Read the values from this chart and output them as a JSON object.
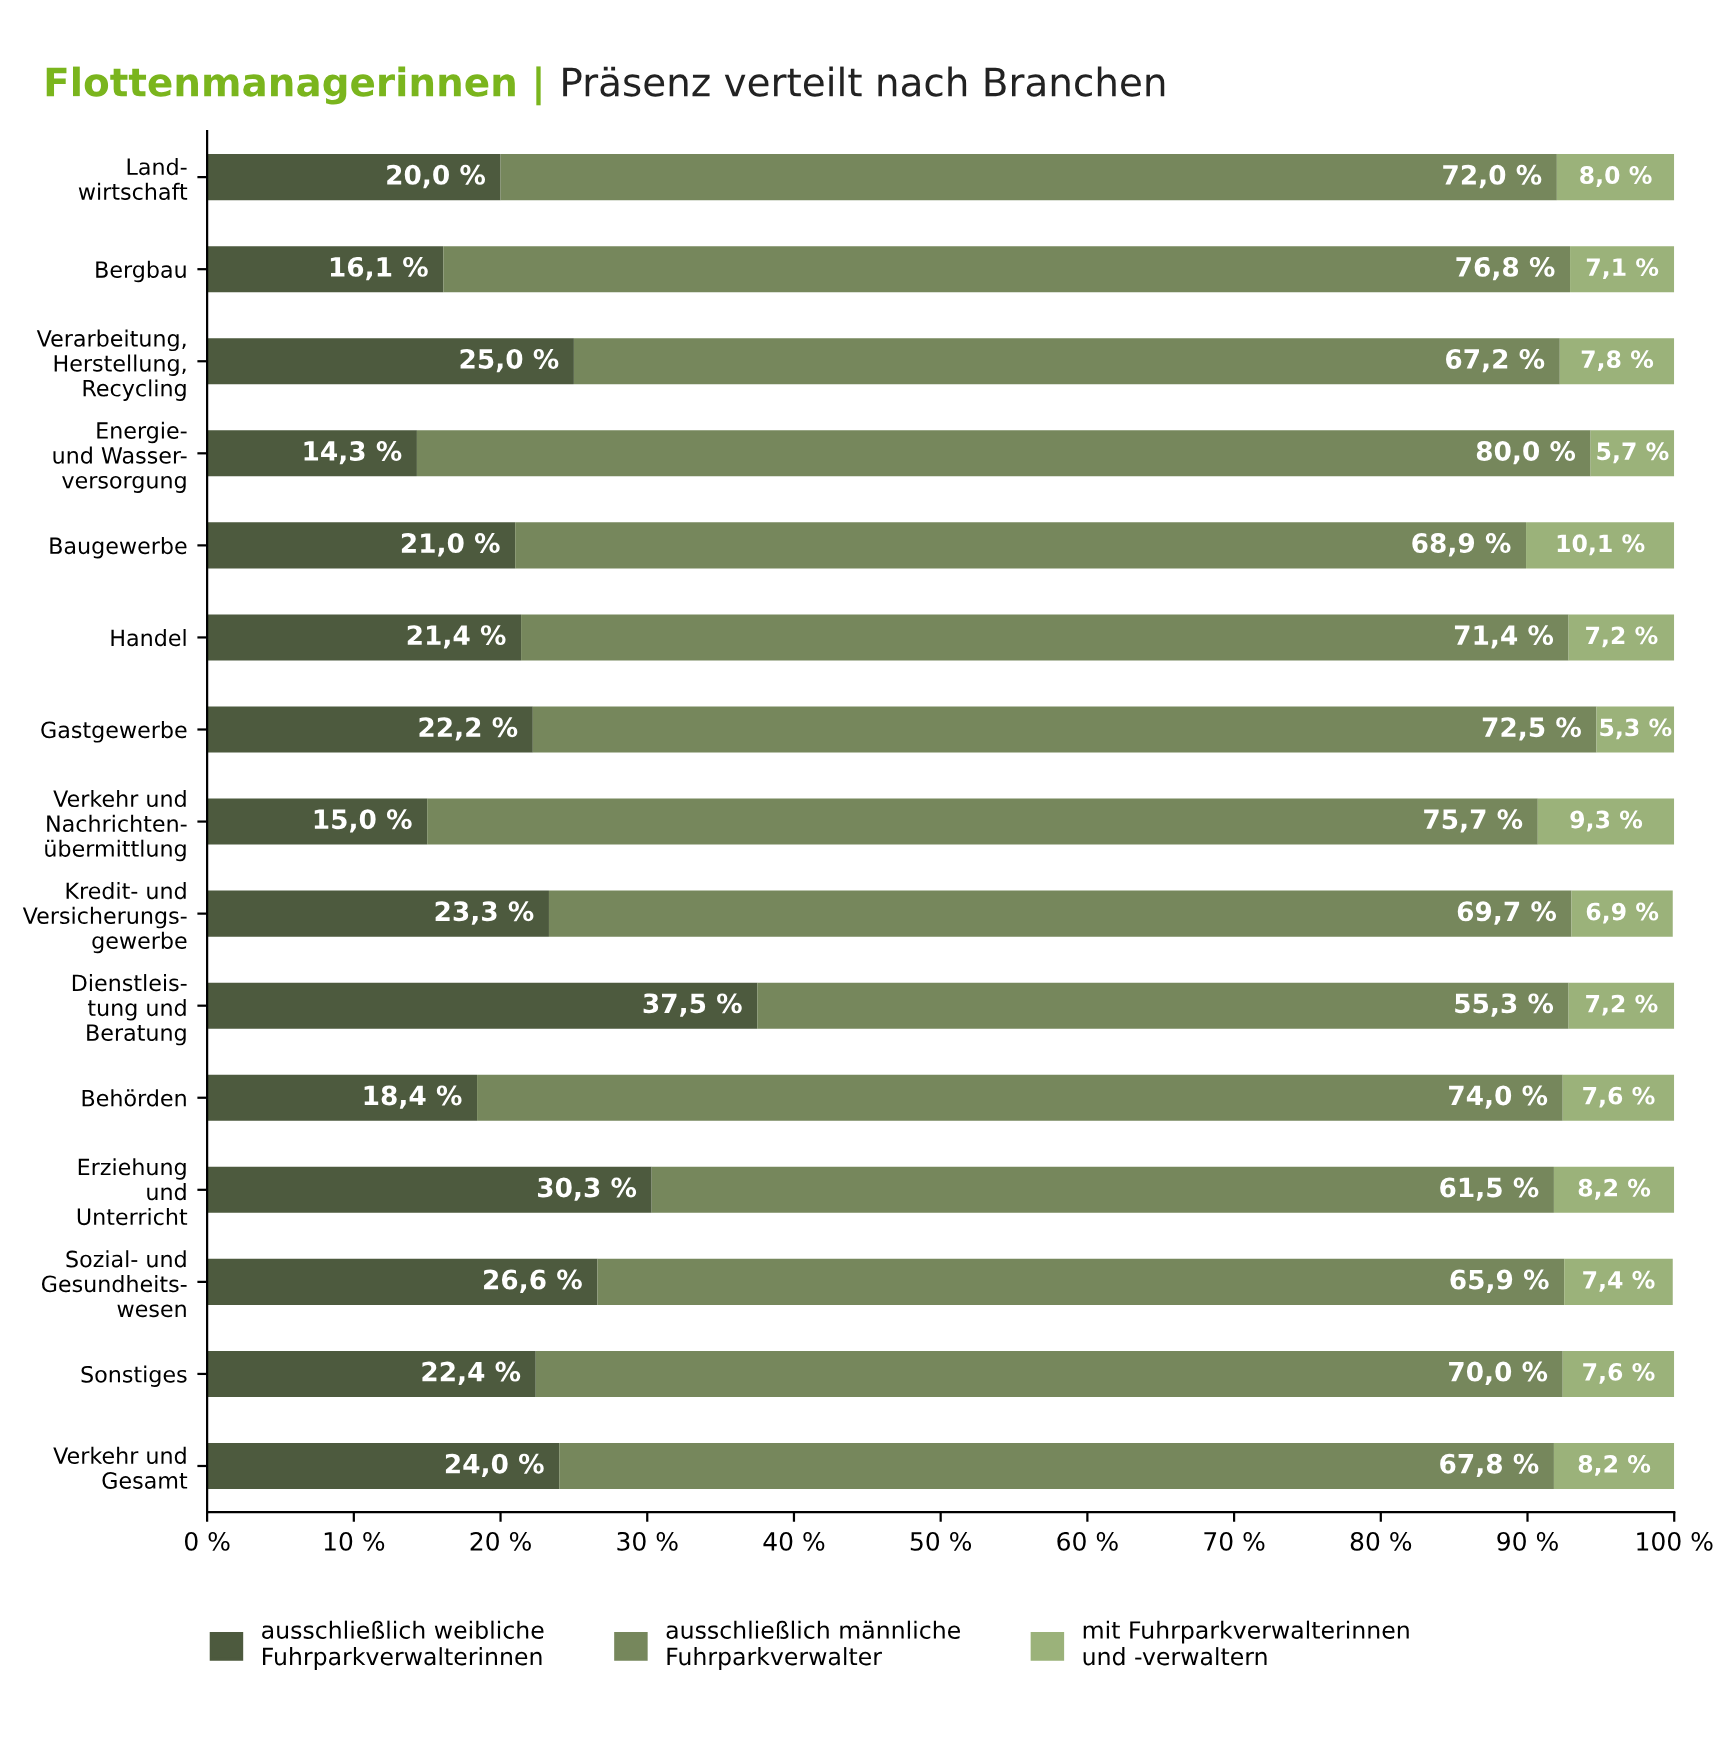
{
  "chart_data": {
    "type": "bar",
    "orientation": "horizontal",
    "stacked": true,
    "title": "Flottenmanagerinnen |",
    "subtitle": "Präsenz verteilt nach Branchen",
    "categories": [
      "Land-\nwirtschaft",
      "Bergbau",
      "Verarbeitung,\nHerstellung,\nRecycling",
      "Energie-\nund Wasser-\nversorgung",
      "Baugewerbe",
      "Handel",
      "Gastgewerbe",
      "Verkehr und\nNachrichten-\nübermittlung",
      "Kredit- und\nVersicherungs-\ngewerbe",
      "Dienstleis-\ntung und\nBeratung",
      "Behörden",
      "Erziehung\nund\nUnterricht",
      "Sozial- und\nGesundheits-\nwesen",
      "Sonstiges",
      "Verkehr und\nGesamt"
    ],
    "series": [
      {
        "name": "ausschließlich weibliche\nFuhrparkverwalterinnen",
        "color": "#4d5a3e",
        "values": [
          20.0,
          16.1,
          25.0,
          14.3,
          21.0,
          21.4,
          22.2,
          15.0,
          23.3,
          37.5,
          18.4,
          30.3,
          26.6,
          22.4,
          24.0
        ],
        "value_labels": [
          "20,0 %",
          "16,1 %",
          "25,0 %",
          "14,3 %",
          "21,0 %",
          "21,4 %",
          "22,2 %",
          "15,0 %",
          "23,3 %",
          "37,5 %",
          "18,4 %",
          "30,3 %",
          "26,6 %",
          "22,4 %",
          "24,0 %"
        ]
      },
      {
        "name": "ausschließlich männliche\nFuhrparkverwalter",
        "color": "#76875c",
        "values": [
          72.0,
          76.8,
          67.2,
          80.0,
          68.9,
          71.4,
          72.5,
          75.7,
          69.7,
          55.3,
          74.0,
          61.5,
          65.9,
          70.0,
          67.8
        ],
        "value_labels": [
          "72,0 %",
          "76,8 %",
          "67,2 %",
          "80,0 %",
          "68,9 %",
          "71,4 %",
          "72,5 %",
          "75,7 %",
          "69,7 %",
          "55,3 %",
          "74,0 %",
          "61,5 %",
          "65,9 %",
          "70,0 %",
          "67,8 %"
        ]
      },
      {
        "name": "mit Fuhrparkverwalterinnen\nund -verwaltern",
        "color": "#9bb27a",
        "values": [
          8.0,
          7.1,
          7.8,
          5.7,
          10.1,
          7.2,
          5.3,
          9.3,
          6.9,
          7.2,
          7.6,
          8.2,
          7.4,
          7.6,
          8.2
        ],
        "value_labels": [
          "8,0 %",
          "7,1 %",
          "7,8 %",
          "5,7 %",
          "10,1 %",
          "7,2 %",
          "5,3 %",
          "9,3 %",
          "6,9 %",
          "7,2 %",
          "7,6 %",
          "8,2 %",
          "7,4 %",
          "7,6 %",
          "8,2 %"
        ]
      }
    ],
    "xlim": [
      0,
      100
    ],
    "xticks": [
      {
        "value": 0,
        "label": "0 %"
      },
      {
        "value": 10,
        "label": "10 %"
      },
      {
        "value": 20,
        "label": "20 %"
      },
      {
        "value": 30,
        "label": "30 %"
      },
      {
        "value": 40,
        "label": "40 %"
      },
      {
        "value": 50,
        "label": "50 %"
      },
      {
        "value": 60,
        "label": "60 %"
      },
      {
        "value": 70,
        "label": "70 %"
      },
      {
        "value": 80,
        "label": "80 %"
      },
      {
        "value": 90,
        "label": "90 %"
      },
      {
        "value": 100,
        "label": "100 %"
      }
    ],
    "legend": "bottom left",
    "grid": false
  }
}
